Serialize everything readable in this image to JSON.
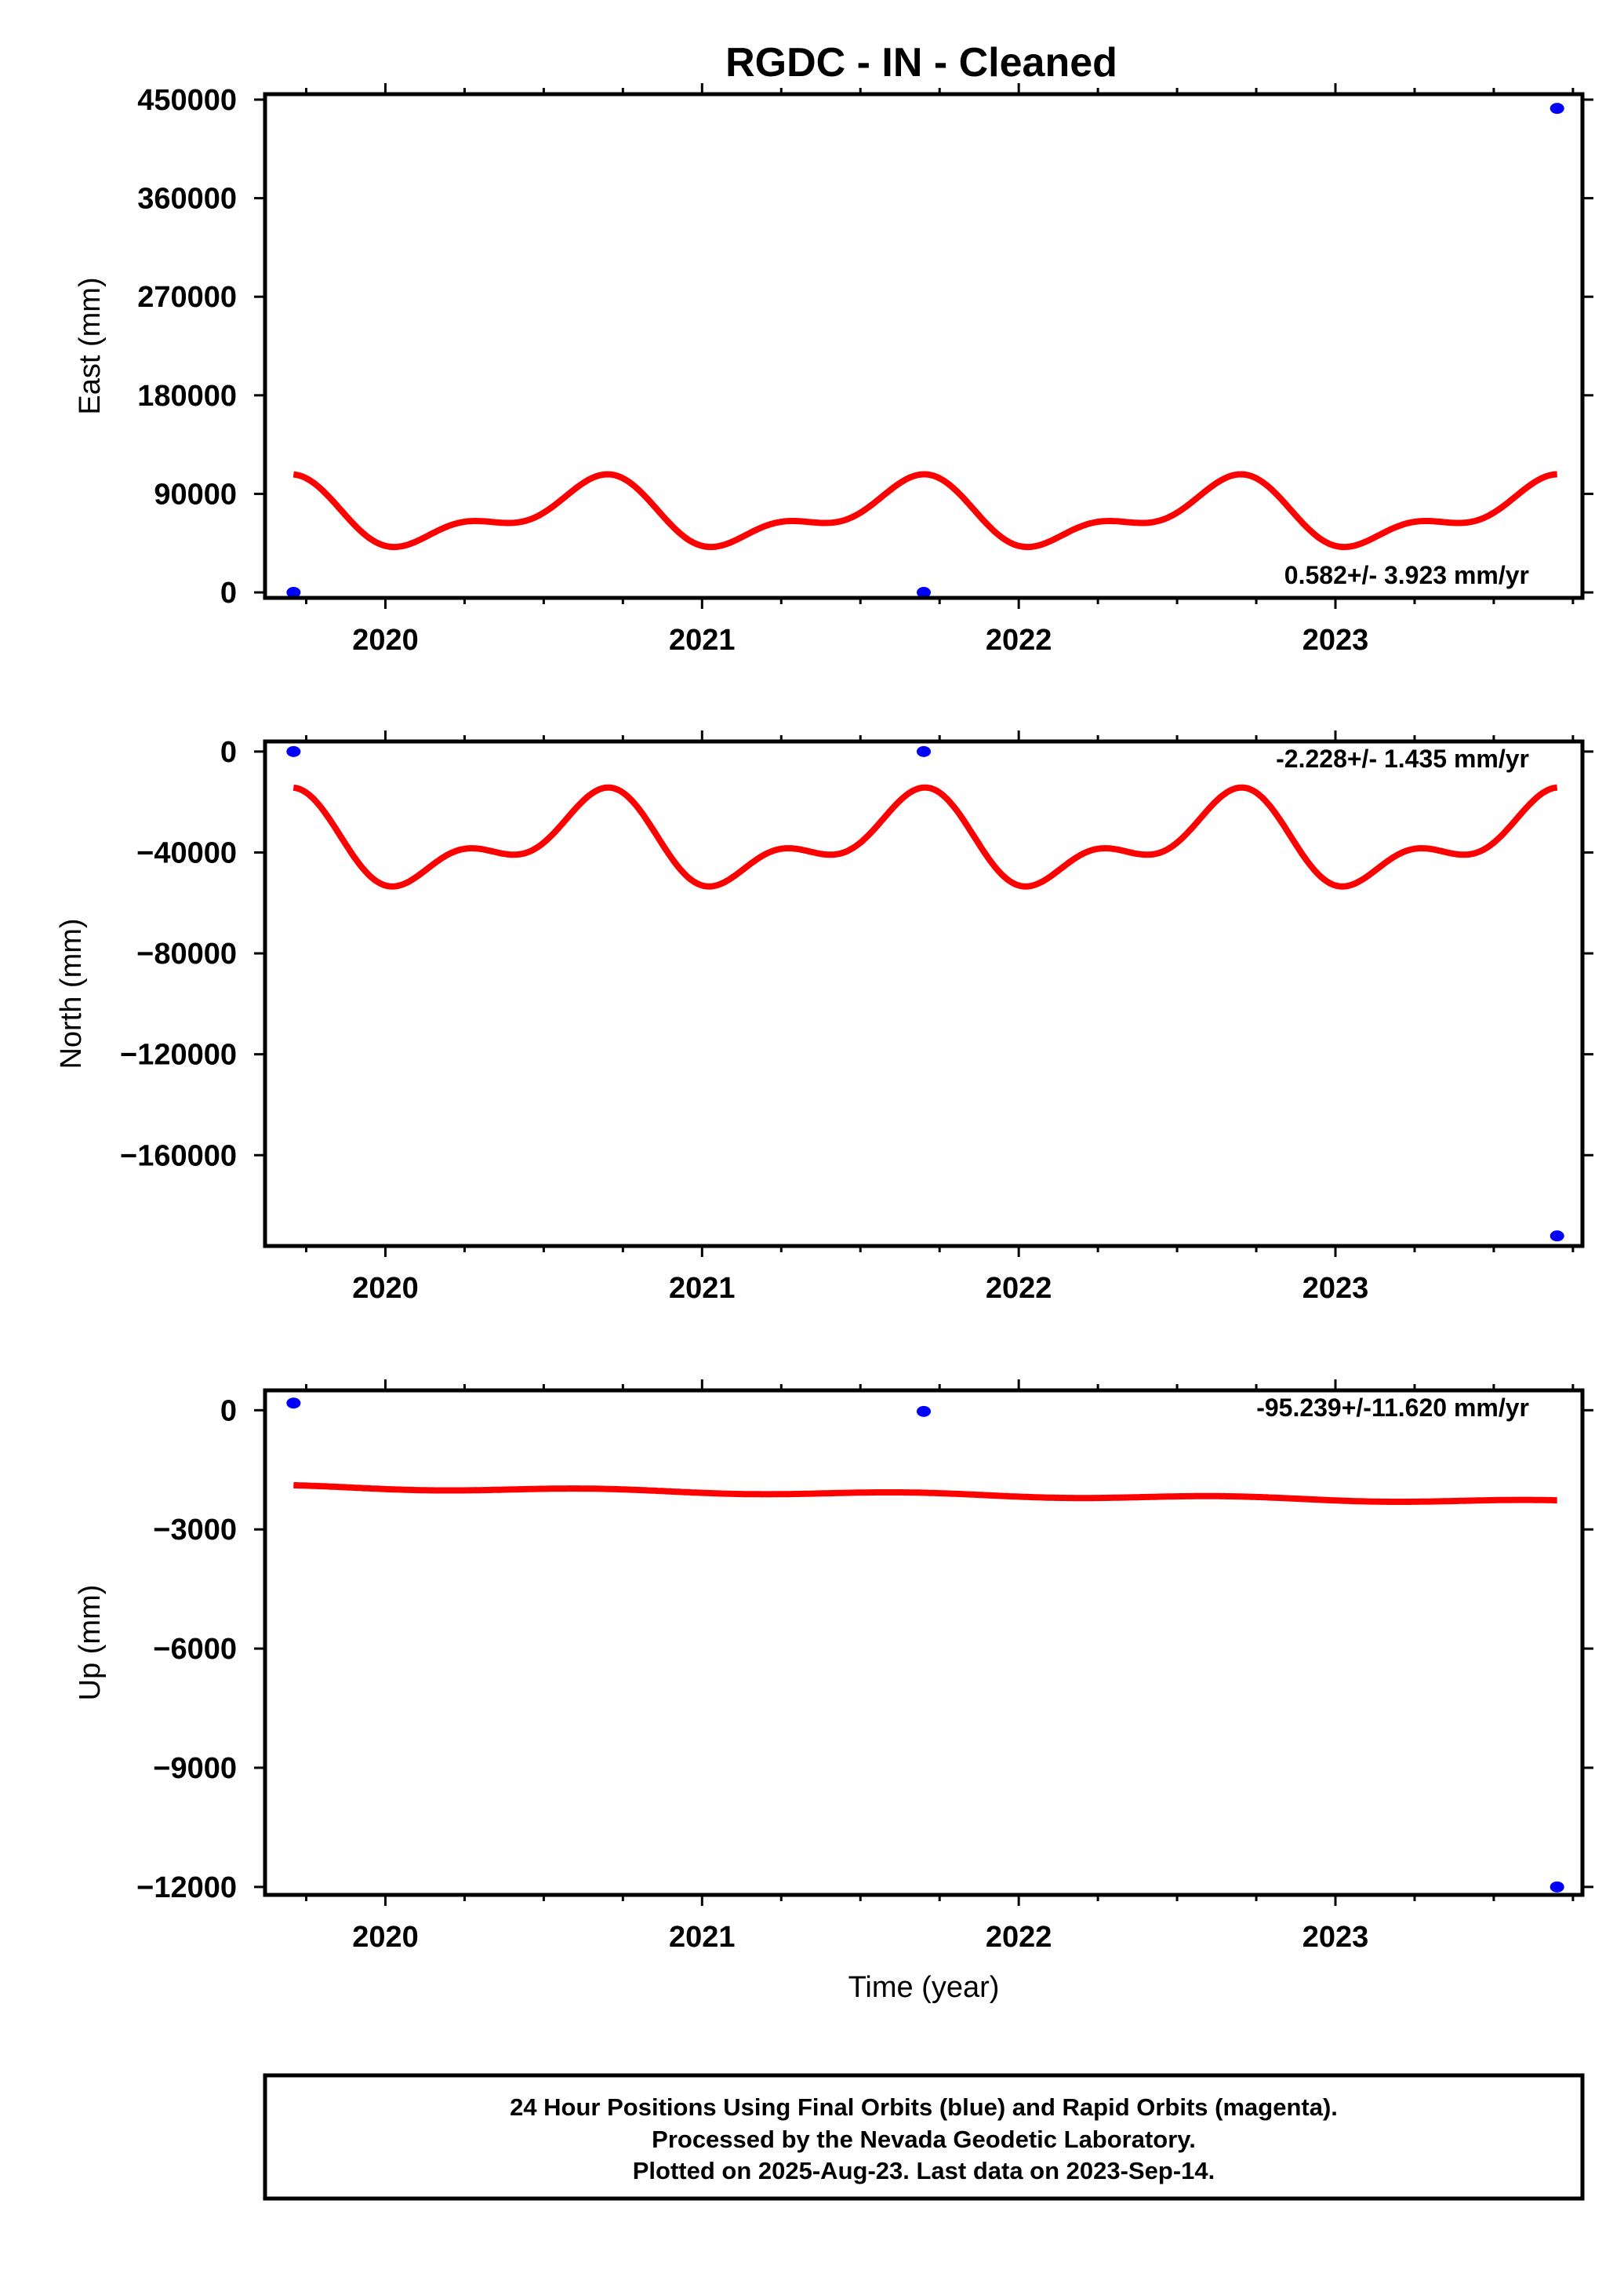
{
  "title": "RGDC  - IN - Cleaned",
  "colors": {
    "final_orbits": "#0000ff",
    "model": "#ff0000",
    "axes": "#000000"
  },
  "chart_data": [
    {
      "type": "scatter",
      "ylabel": "East (mm)",
      "xlabel": "",
      "xlim": [
        2019.62,
        2023.78
      ],
      "ylim": [
        -5000,
        455000
      ],
      "yticks": [
        0,
        90000,
        180000,
        270000,
        360000,
        450000
      ],
      "ytick_labels": [
        "0",
        "90000",
        "180000",
        "270000",
        "360000",
        "450000"
      ],
      "xticks": [
        2020,
        2021,
        2022,
        2023
      ],
      "xtick_labels": [
        "2020",
        "2021",
        "2022",
        "2023"
      ],
      "rate_text": "0.582+/- 3.923 mm/yr",
      "points": [
        {
          "x": 2019.71,
          "y": 0
        },
        {
          "x": 2021.7,
          "y": 0
        },
        {
          "x": 2023.7,
          "y": 442000
        }
      ],
      "model": {
        "x0": 2019.71,
        "x1": 2023.7,
        "base": 71000,
        "trend": 0,
        "a1": 25000,
        "p1": 0.4,
        "a2": 14000,
        "p2": -0.2
      }
    },
    {
      "type": "scatter",
      "ylabel": "North (mm)",
      "xlabel": "",
      "xlim": [
        2019.62,
        2023.78
      ],
      "ylim": [
        -196000,
        4000
      ],
      "yticks": [
        0,
        -40000,
        -80000,
        -120000,
        -160000
      ],
      "ytick_labels": [
        "0",
        "−40000",
        "−80000",
        "−120000",
        "−160000"
      ],
      "xticks": [
        2020,
        2021,
        2022,
        2023
      ],
      "xtick_labels": [
        "2020",
        "2021",
        "2022",
        "2023"
      ],
      "rate_text": "-2.228+/- 1.435 mm/yr",
      "points": [
        {
          "x": 2019.71,
          "y": 0
        },
        {
          "x": 2021.7,
          "y": 0
        },
        {
          "x": 2023.7,
          "y": -192000
        }
      ],
      "model": {
        "x0": 2019.71,
        "x1": 2023.7,
        "base": -36000,
        "trend": 0,
        "a1": 14000,
        "p1": 0.4,
        "a2": 9000,
        "p2": -0.2
      }
    },
    {
      "type": "scatter",
      "ylabel": "Up (mm)",
      "xlabel": "Time (year)",
      "xlim": [
        2019.62,
        2023.78
      ],
      "ylim": [
        -12200,
        500
      ],
      "yticks": [
        0,
        -3000,
        -6000,
        -9000,
        -12000
      ],
      "ytick_labels": [
        "0",
        "−3000",
        "−6000",
        "−9000",
        "−12000"
      ],
      "xticks": [
        2020,
        2021,
        2022,
        2023
      ],
      "xtick_labels": [
        "2020",
        "2021",
        "2022",
        "2023"
      ],
      "rate_text": "-95.239+/-11.620 mm/yr",
      "points": [
        {
          "x": 2019.71,
          "y": 180
        },
        {
          "x": 2021.7,
          "y": -30
        },
        {
          "x": 2023.7,
          "y": -12000
        }
      ],
      "model": {
        "x0": 2019.71,
        "x1": 2023.7,
        "base": -1930,
        "trend": -95.239,
        "a1": 45,
        "p1": 0.4,
        "a2": 0,
        "p2": 0
      }
    }
  ],
  "footer": {
    "line1": "24 Hour Positions Using Final Orbits (blue) and Rapid Orbits (magenta).",
    "line2": "Processed by the Nevada Geodetic Laboratory.",
    "line3": "Plotted on 2025-Aug-23. Last data on 2023-Sep-14."
  }
}
